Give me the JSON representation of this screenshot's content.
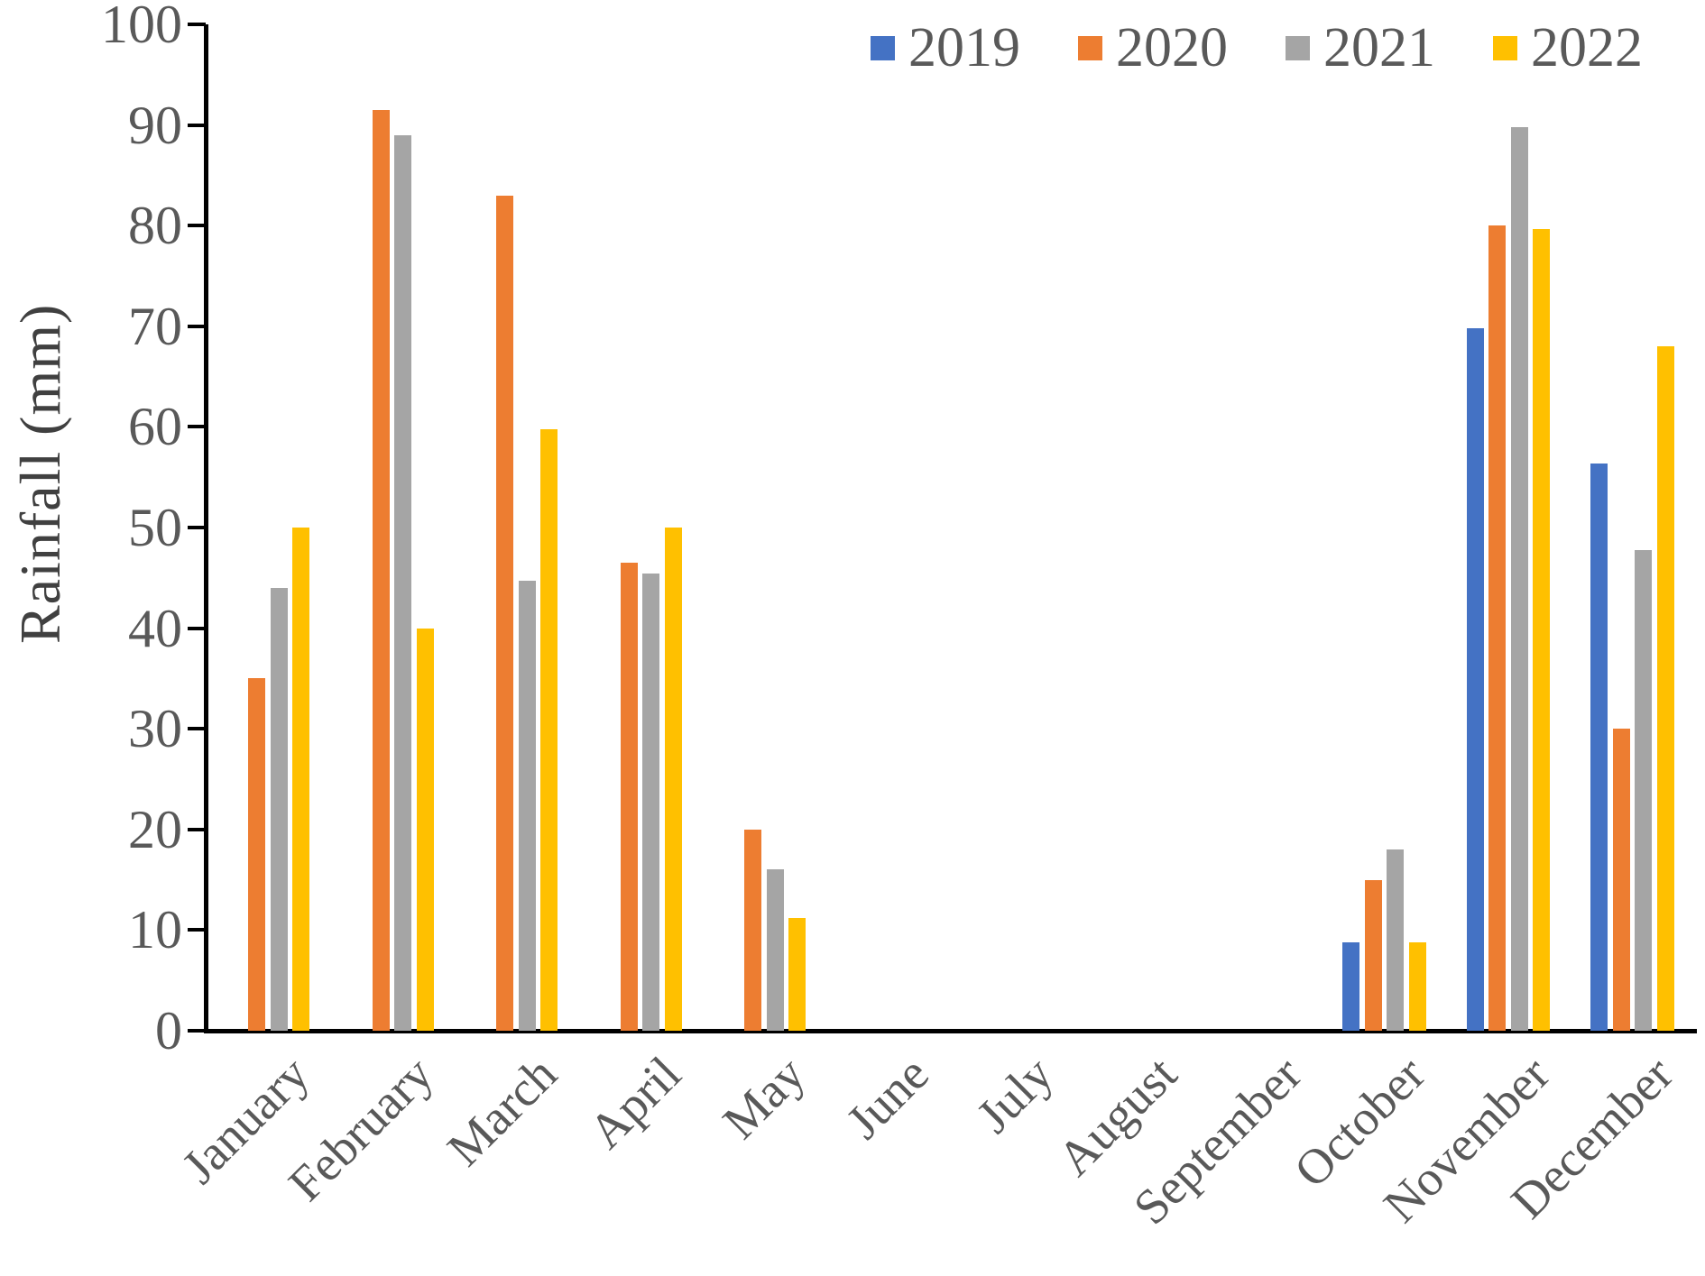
{
  "chart_data": {
    "type": "bar",
    "title": "",
    "xlabel": "",
    "ylabel": "Rainfall (mm)",
    "ylim": [
      0,
      100
    ],
    "yticks": [
      0,
      10,
      20,
      30,
      40,
      50,
      60,
      70,
      80,
      90,
      100
    ],
    "grid": false,
    "legend_position": "top-right",
    "categories": [
      "January",
      "February",
      "March",
      "April",
      "May",
      "June",
      "July",
      "August",
      "September",
      "October",
      "November",
      "December"
    ],
    "series": [
      {
        "name": "2019",
        "color": "#4472C4",
        "values": [
          0,
          0,
          0,
          0,
          0,
          0,
          0,
          0,
          0,
          8.8,
          69.8,
          56.4
        ]
      },
      {
        "name": "2020",
        "color": "#ED7D31",
        "values": [
          35,
          91.5,
          83,
          46.5,
          20,
          0,
          0,
          0,
          0,
          15,
          80,
          30
        ]
      },
      {
        "name": "2021",
        "color": "#A5A5A5",
        "values": [
          44,
          89,
          44.7,
          45.4,
          16,
          0,
          0,
          0,
          0,
          18,
          89.8,
          47.8
        ]
      },
      {
        "name": "2022",
        "color": "#FFC000",
        "values": [
          50,
          40,
          59.8,
          50,
          11.2,
          0,
          0,
          0,
          0,
          8.8,
          79.7,
          68
        ]
      }
    ],
    "axis_color": "#000000",
    "text_color": "#595959"
  }
}
